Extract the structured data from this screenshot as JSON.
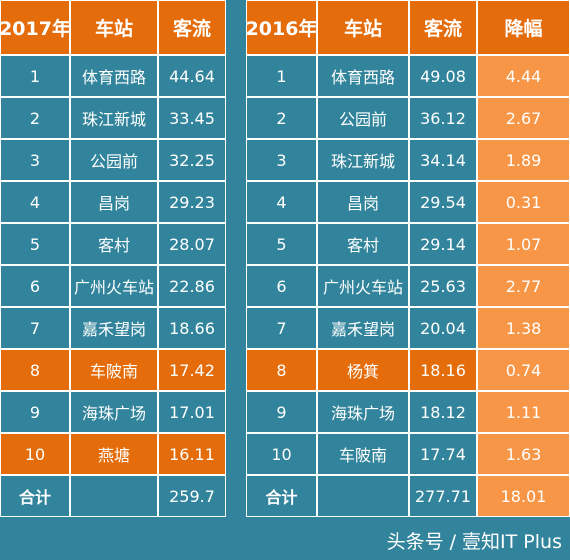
{
  "left": {
    "header": [
      "2017年",
      "车站",
      "客流"
    ],
    "rows": [
      [
        "1",
        "体育西路",
        "44.64"
      ],
      [
        "2",
        "珠江新城",
        "33.45"
      ],
      [
        "3",
        "公园前",
        "32.25"
      ],
      [
        "4",
        "昌岗",
        "29.23"
      ],
      [
        "5",
        "客村",
        "28.07"
      ],
      [
        "6",
        "广州火车站",
        "22.86"
      ],
      [
        "7",
        "嘉禾望岗",
        "18.66"
      ],
      [
        "8",
        "车陂南",
        "17.42"
      ],
      [
        "9",
        "海珠广场",
        "17.01"
      ],
      [
        "10",
        "燕塘",
        "16.11"
      ]
    ],
    "total": [
      "合计",
      "259.7"
    ]
  },
  "right": {
    "header": [
      "2016年",
      "车站",
      "客流",
      "降幅"
    ],
    "rows": [
      [
        "1",
        "体育西路",
        "49.08",
        "4.44"
      ],
      [
        "2",
        "公园前",
        "36.12",
        "2.67"
      ],
      [
        "3",
        "珠江新城",
        "34.14",
        "1.89"
      ],
      [
        "4",
        "昌岗",
        "29.54",
        "0.31"
      ],
      [
        "5",
        "客村",
        "29.14",
        "1.07"
      ],
      [
        "6",
        "广州火车站",
        "25.63",
        "2.77"
      ],
      [
        "7",
        "嘉禾望岗",
        "20.04",
        "1.38"
      ],
      [
        "8",
        "杨箕",
        "18.16",
        "0.74"
      ],
      [
        "9",
        "海珠广场",
        "18.12",
        "1.11"
      ],
      [
        "10",
        "车陂南",
        "17.74",
        "1.63"
      ]
    ],
    "total": [
      "合计",
      "277.71",
      "18.01"
    ]
  },
  "watermark": "头条号 / 壹知IT Plus"
}
